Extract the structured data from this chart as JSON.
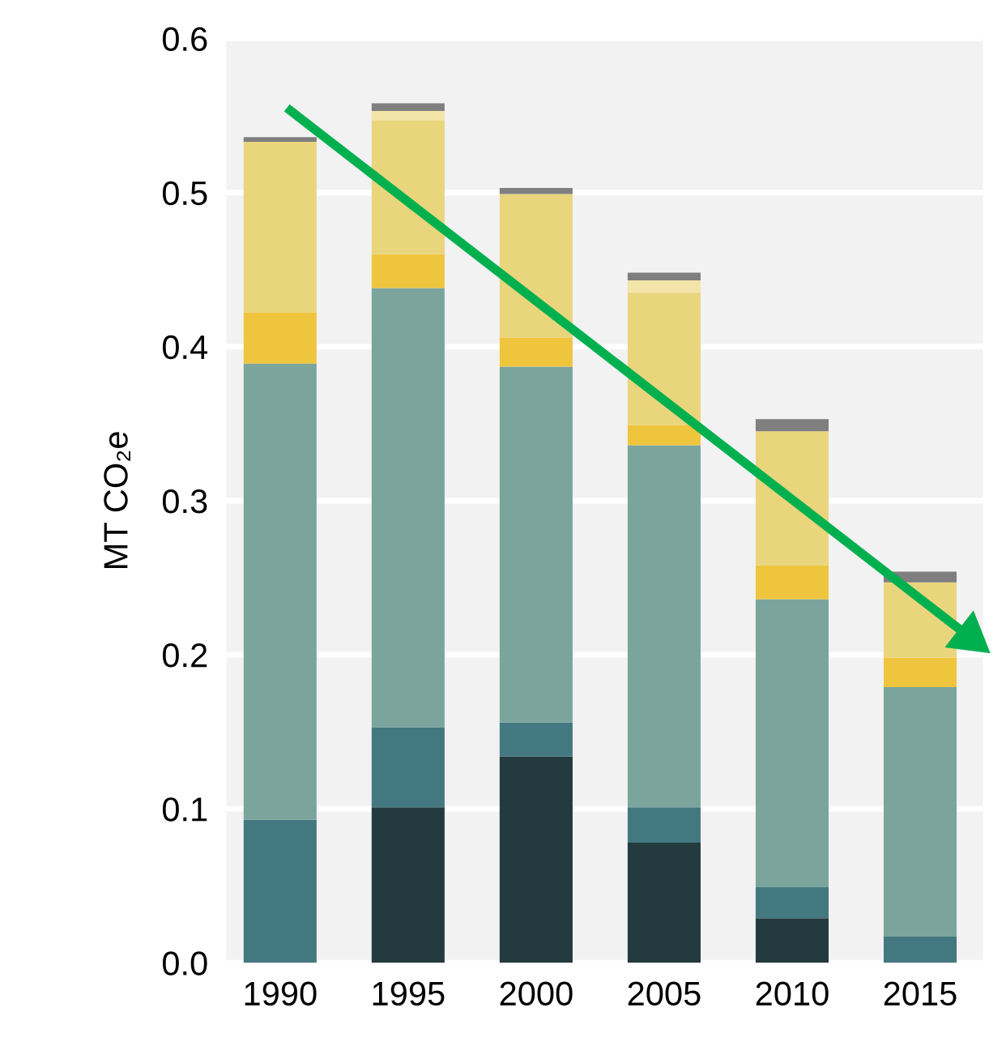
{
  "chart_data": {
    "type": "bar",
    "stacked": true,
    "ylabel": "MT CO₂e",
    "categories": [
      "1990",
      "1995",
      "2000",
      "2005",
      "2010",
      "2015"
    ],
    "series": [
      {
        "color": "#233b3f",
        "values": [
          0,
          0.101,
          0.134,
          0.078,
          0.029,
          0
        ]
      },
      {
        "color": "#447880",
        "values": [
          0.093,
          0.052,
          0.022,
          0.023,
          0.02,
          0.017
        ]
      },
      {
        "color": "#7ba59c",
        "values": [
          0.296,
          0.285,
          0.231,
          0.235,
          0.187,
          0.162
        ]
      },
      {
        "color": "#f0c53e",
        "values": [
          0.033,
          0.022,
          0.019,
          0.013,
          0.022,
          0.019
        ]
      },
      {
        "color": "#e9d57c",
        "values": [
          0.111,
          0.087,
          0.093,
          0.086,
          0.087,
          0.049
        ]
      },
      {
        "color": "#f3e4a8",
        "values": [
          0,
          0.006,
          0,
          0.008,
          0,
          0
        ]
      },
      {
        "color": "#7f7f7f",
        "values": [
          0.003,
          0.005,
          0.004,
          0.005,
          0.008,
          0.007
        ]
      }
    ],
    "ylim": [
      0,
      0.6
    ],
    "yticks": [
      {
        "value": 0,
        "label": "0.0"
      },
      0.1,
      0.2,
      0.3,
      0.4,
      0.5,
      0.6
    ],
    "grid": "y",
    "legend": false
  }
}
